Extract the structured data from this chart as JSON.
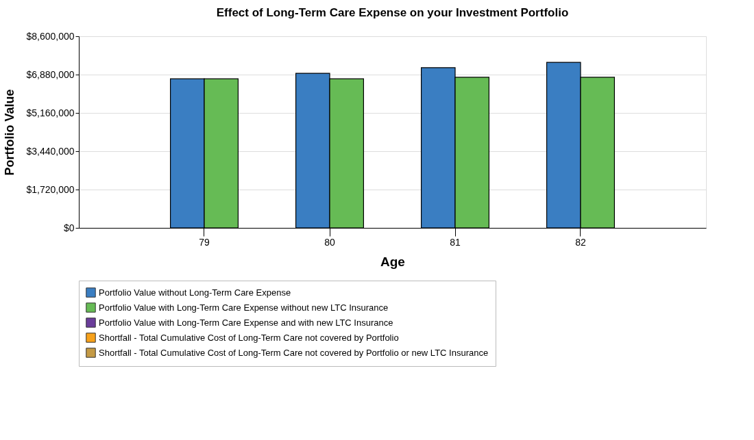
{
  "chart_data": {
    "type": "bar",
    "title": "Effect of Long-Term Care Expense on your Investment Portfolio",
    "xlabel": "Age",
    "ylabel": "Portfolio Value",
    "categories": [
      "79",
      "80",
      "81",
      "82"
    ],
    "series": [
      {
        "name": "Portfolio Value without Long-Term Care Expense",
        "color": "#3a7ec2",
        "values": [
          6690000,
          6940000,
          7190000,
          7430000
        ]
      },
      {
        "name": "Portfolio Value with Long-Term Care Expense without new LTC Insurance",
        "color": "#66bb55",
        "values": [
          6690000,
          6690000,
          6760000,
          6760000
        ]
      },
      {
        "name": "Portfolio Value with Long-Term Care Expense and with new LTC Insurance",
        "color": "#6a3d9a",
        "values": [
          null,
          null,
          null,
          null
        ]
      },
      {
        "name": "Shortfall - Total Cumulative Cost of Long-Term Care not covered by Portfolio",
        "color": "#f7a11a",
        "values": [
          null,
          null,
          null,
          null
        ]
      },
      {
        "name": "Shortfall - Total Cumulative Cost of Long-Term Care not covered by Portfolio or new LTC Insurance",
        "color": "#c49a45",
        "values": [
          null,
          null,
          null,
          null
        ]
      }
    ],
    "ylim": [
      0,
      8600000
    ],
    "yticks": [
      {
        "value": 0,
        "label": "$0"
      },
      {
        "value": 1720000,
        "label": "$1,720,000"
      },
      {
        "value": 3440000,
        "label": "$3,440,000"
      },
      {
        "value": 5160000,
        "label": "$5,160,000"
      },
      {
        "value": 6880000,
        "label": "$6,880,000"
      },
      {
        "value": 8600000,
        "label": "$8,600,000"
      }
    ],
    "grid": "y",
    "legend": "bottom"
  }
}
